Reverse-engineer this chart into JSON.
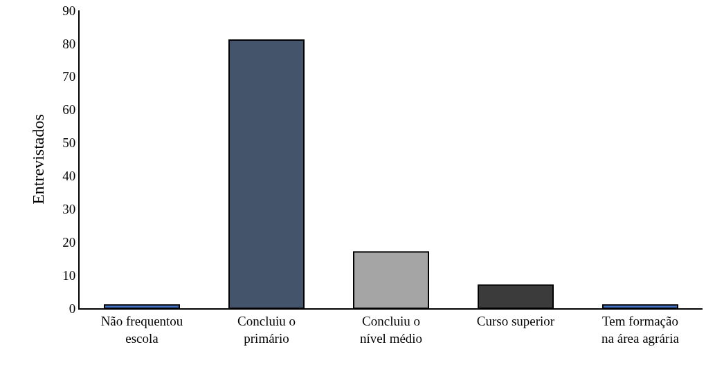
{
  "chart_data": {
    "type": "bar",
    "ylabel": "Entrevistados",
    "categories": [
      "Não frequentou\nescola",
      "Concluiu o\nprimário",
      "Concluiu o\nnível médio",
      "Curso superior",
      "Tem formação\nna área agrária"
    ],
    "values": [
      1,
      81,
      17,
      7,
      1
    ],
    "colors": [
      "#4472c4",
      "#44546a",
      "#a5a5a5",
      "#3b3b3b",
      "#4472c4"
    ],
    "ylim": [
      0,
      90
    ],
    "yticks": [
      0,
      10,
      20,
      30,
      40,
      50,
      60,
      70,
      80,
      90
    ],
    "legend": false
  }
}
